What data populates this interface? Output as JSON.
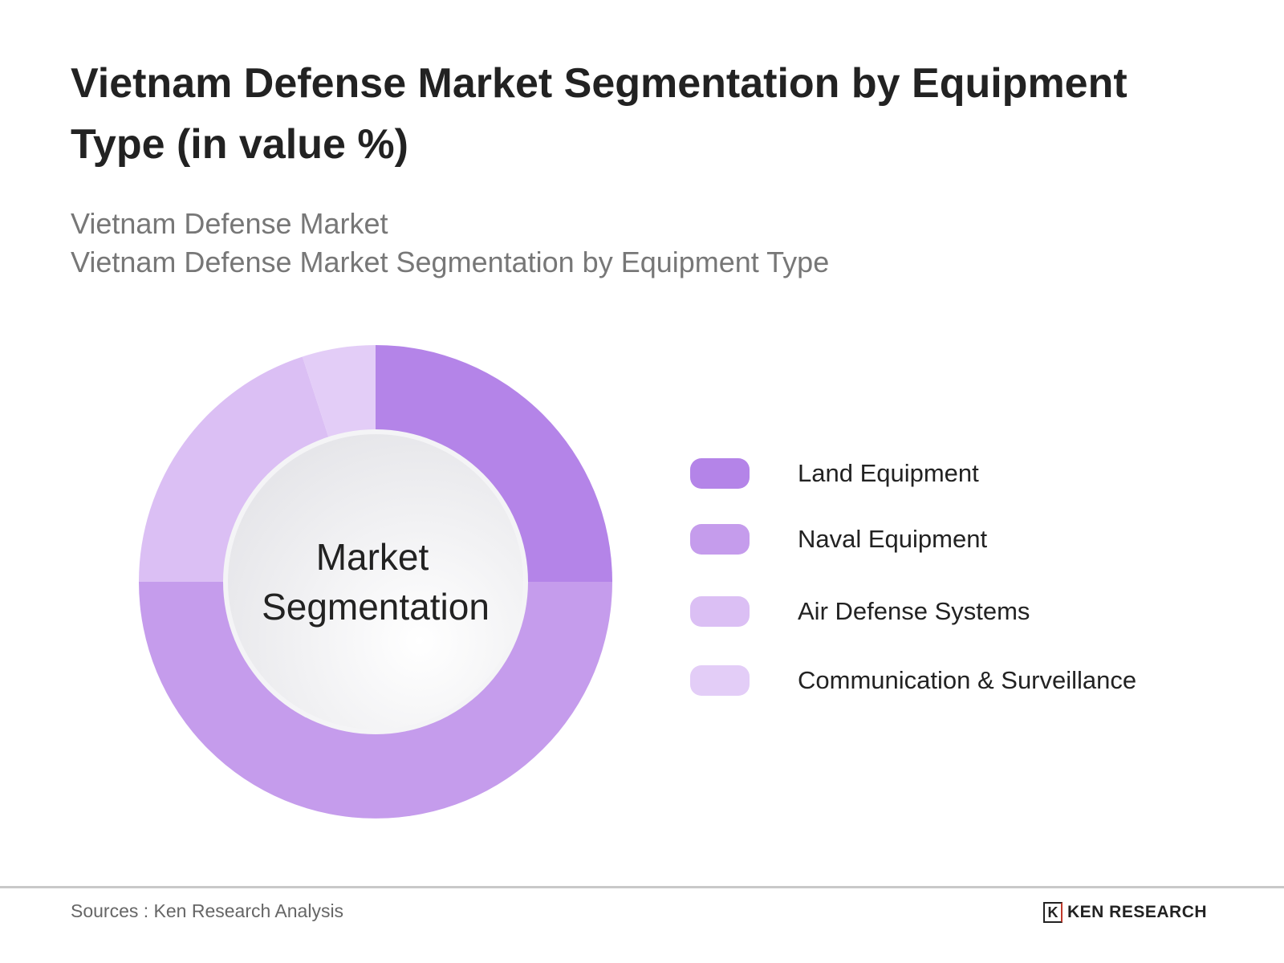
{
  "title": "Vietnam Defense Market Segmentation by Equipment Type (in value %)",
  "subtitle_1": "Vietnam Defense Market",
  "subtitle_2": "Vietnam Defense Market Segmentation by Equipment Type",
  "chart_data": {
    "type": "pie",
    "variant": "donut",
    "center_label": [
      "Market",
      "Segmentation"
    ],
    "categories": [
      "Land Equipment",
      "Naval Equipment",
      "Air Defense Systems",
      "Communication & Surveillance"
    ],
    "values": [
      25,
      50,
      20,
      5
    ],
    "colors": [
      "#b484e8",
      "#c59cec",
      "#dbbff4",
      "#e3cdf7"
    ],
    "legend_position": "right"
  },
  "footer": {
    "source": "Sources : Ken Research Analysis",
    "logo_text": "KEN RESEARCH"
  }
}
